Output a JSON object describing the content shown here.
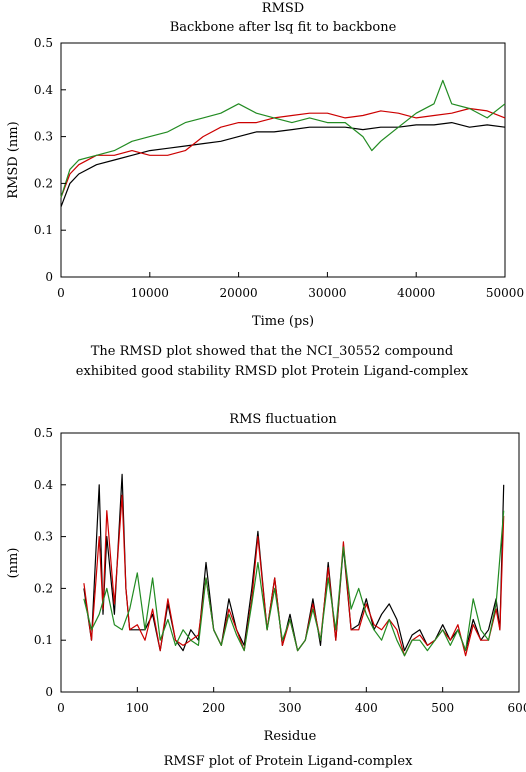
{
  "chart_data": [
    {
      "type": "line",
      "title": "RMSD",
      "subtitle": "Backbone after lsq fit to backbone",
      "xlabel": "Time (ps)",
      "ylabel": "RMSD (nm)",
      "xlim": [
        0,
        50000
      ],
      "ylim": [
        0,
        0.5
      ],
      "xticks": [
        "0",
        "10000",
        "20000",
        "30000",
        "40000",
        "50000"
      ],
      "yticks": [
        "0",
        "0.1",
        "0.2",
        "0.3",
        "0.4",
        "0.5"
      ],
      "grid": false,
      "caption": "The RMSD plot showed that the NCI_30552 compound exhibited good stability RMSD plot Protein Ligand-complex",
      "series": [
        {
          "color": "#000000",
          "x": [
            0,
            1000,
            2000,
            4000,
            6000,
            8000,
            10000,
            12000,
            14000,
            16000,
            18000,
            20000,
            22000,
            24000,
            26000,
            28000,
            30000,
            32000,
            34000,
            36000,
            38000,
            40000,
            42000,
            44000,
            46000,
            48000,
            50000
          ],
          "y": [
            0.15,
            0.2,
            0.22,
            0.24,
            0.25,
            0.26,
            0.27,
            0.275,
            0.28,
            0.285,
            0.29,
            0.3,
            0.31,
            0.31,
            0.315,
            0.32,
            0.32,
            0.32,
            0.315,
            0.32,
            0.32,
            0.325,
            0.325,
            0.33,
            0.32,
            0.325,
            0.32
          ]
        },
        {
          "color": "#cc0000",
          "x": [
            0,
            1000,
            2000,
            4000,
            6000,
            8000,
            10000,
            12000,
            14000,
            16000,
            18000,
            20000,
            22000,
            24000,
            26000,
            28000,
            30000,
            32000,
            34000,
            36000,
            38000,
            40000,
            42000,
            44000,
            46000,
            48000,
            50000
          ],
          "y": [
            0.17,
            0.22,
            0.24,
            0.26,
            0.26,
            0.27,
            0.26,
            0.26,
            0.27,
            0.3,
            0.32,
            0.33,
            0.33,
            0.34,
            0.345,
            0.35,
            0.35,
            0.34,
            0.345,
            0.355,
            0.35,
            0.34,
            0.345,
            0.35,
            0.36,
            0.355,
            0.34
          ]
        },
        {
          "color": "#228B22",
          "x": [
            0,
            1000,
            2000,
            4000,
            6000,
            8000,
            10000,
            12000,
            14000,
            16000,
            18000,
            20000,
            22000,
            24000,
            26000,
            28000,
            30000,
            32000,
            34000,
            35000,
            36000,
            38000,
            40000,
            42000,
            43000,
            44000,
            46000,
            48000,
            50000
          ],
          "y": [
            0.17,
            0.23,
            0.25,
            0.26,
            0.27,
            0.29,
            0.3,
            0.31,
            0.33,
            0.34,
            0.35,
            0.37,
            0.35,
            0.34,
            0.33,
            0.34,
            0.33,
            0.33,
            0.3,
            0.27,
            0.29,
            0.32,
            0.35,
            0.37,
            0.42,
            0.37,
            0.36,
            0.34,
            0.37
          ]
        }
      ]
    },
    {
      "type": "line",
      "title": "RMS fluctuation",
      "xlabel": "Residue",
      "ylabel": "(nm)",
      "xlim": [
        0,
        600
      ],
      "ylim": [
        0,
        0.5
      ],
      "xticks": [
        "0",
        "100",
        "200",
        "300",
        "400",
        "500",
        "600"
      ],
      "yticks": [
        "0",
        "0.1",
        "0.2",
        "0.3",
        "0.4",
        "0.5"
      ],
      "grid": false,
      "caption": "RMSF plot of Protein Ligand-complex",
      "series": [
        {
          "color": "#000000",
          "x": [
            30,
            40,
            50,
            55,
            60,
            70,
            80,
            85,
            90,
            100,
            110,
            120,
            130,
            140,
            150,
            160,
            170,
            180,
            190,
            200,
            210,
            220,
            230,
            240,
            250,
            258,
            270,
            280,
            290,
            300,
            310,
            320,
            330,
            340,
            350,
            360,
            370,
            380,
            390,
            400,
            410,
            420,
            430,
            440,
            450,
            460,
            470,
            480,
            490,
            500,
            510,
            520,
            530,
            540,
            550,
            560,
            570,
            575,
            580
          ],
          "y": [
            0.2,
            0.1,
            0.4,
            0.15,
            0.3,
            0.15,
            0.42,
            0.2,
            0.12,
            0.12,
            0.12,
            0.15,
            0.08,
            0.17,
            0.1,
            0.08,
            0.12,
            0.1,
            0.25,
            0.12,
            0.09,
            0.18,
            0.12,
            0.09,
            0.2,
            0.31,
            0.12,
            0.22,
            0.09,
            0.15,
            0.08,
            0.1,
            0.18,
            0.09,
            0.25,
            0.1,
            0.28,
            0.12,
            0.13,
            0.18,
            0.12,
            0.15,
            0.17,
            0.14,
            0.08,
            0.11,
            0.12,
            0.09,
            0.1,
            0.13,
            0.1,
            0.12,
            0.08,
            0.14,
            0.1,
            0.12,
            0.18,
            0.12,
            0.4
          ]
        },
        {
          "color": "#cc0000",
          "x": [
            30,
            40,
            50,
            55,
            60,
            70,
            80,
            85,
            90,
            100,
            110,
            120,
            130,
            140,
            150,
            160,
            170,
            180,
            190,
            200,
            210,
            220,
            230,
            240,
            250,
            258,
            270,
            280,
            290,
            300,
            310,
            320,
            330,
            340,
            350,
            360,
            370,
            380,
            390,
            400,
            410,
            420,
            430,
            440,
            450,
            460,
            470,
            480,
            490,
            500,
            510,
            520,
            530,
            540,
            550,
            560,
            570,
            575,
            580
          ],
          "y": [
            0.21,
            0.1,
            0.3,
            0.16,
            0.35,
            0.17,
            0.38,
            0.2,
            0.12,
            0.13,
            0.1,
            0.16,
            0.08,
            0.18,
            0.1,
            0.09,
            0.1,
            0.11,
            0.22,
            0.12,
            0.09,
            0.16,
            0.12,
            0.08,
            0.18,
            0.3,
            0.12,
            0.22,
            0.09,
            0.14,
            0.08,
            0.1,
            0.17,
            0.1,
            0.24,
            0.1,
            0.29,
            0.12,
            0.12,
            0.17,
            0.13,
            0.12,
            0.14,
            0.12,
            0.07,
            0.1,
            0.11,
            0.09,
            0.1,
            0.12,
            0.1,
            0.13,
            0.07,
            0.13,
            0.1,
            0.1,
            0.16,
            0.12,
            0.34
          ]
        },
        {
          "color": "#228B22",
          "x": [
            30,
            40,
            50,
            60,
            70,
            80,
            90,
            100,
            110,
            120,
            130,
            140,
            150,
            160,
            170,
            180,
            190,
            200,
            210,
            220,
            230,
            240,
            250,
            258,
            270,
            280,
            290,
            300,
            310,
            320,
            330,
            340,
            350,
            360,
            370,
            380,
            390,
            400,
            410,
            420,
            430,
            440,
            450,
            460,
            470,
            480,
            490,
            500,
            510,
            520,
            530,
            540,
            550,
            560,
            570,
            580
          ],
          "y": [
            0.18,
            0.12,
            0.15,
            0.2,
            0.13,
            0.12,
            0.16,
            0.23,
            0.12,
            0.22,
            0.1,
            0.14,
            0.09,
            0.12,
            0.1,
            0.09,
            0.22,
            0.12,
            0.09,
            0.15,
            0.11,
            0.08,
            0.17,
            0.25,
            0.12,
            0.2,
            0.1,
            0.14,
            0.08,
            0.1,
            0.16,
            0.1,
            0.22,
            0.12,
            0.28,
            0.16,
            0.2,
            0.15,
            0.12,
            0.1,
            0.14,
            0.1,
            0.07,
            0.1,
            0.1,
            0.08,
            0.1,
            0.12,
            0.09,
            0.12,
            0.08,
            0.18,
            0.12,
            0.1,
            0.17,
            0.35
          ]
        }
      ]
    }
  ]
}
